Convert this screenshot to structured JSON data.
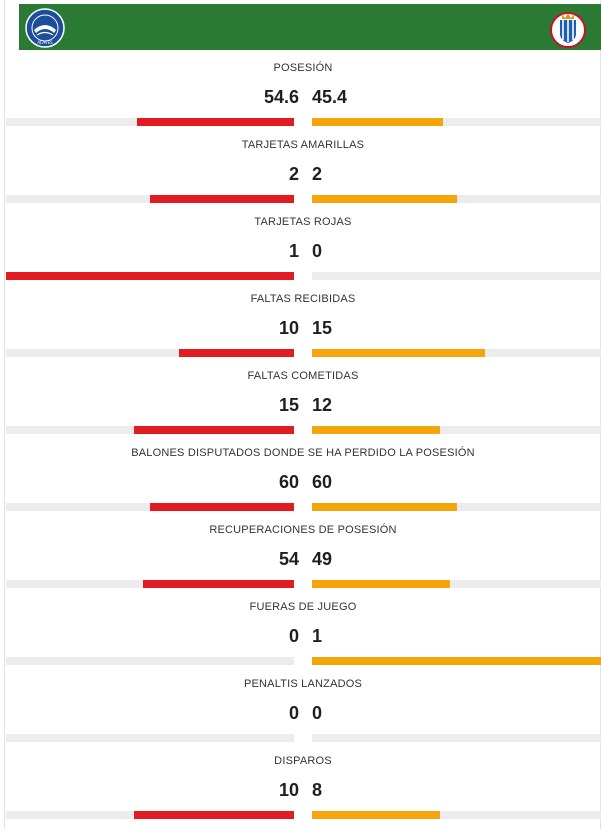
{
  "teams": {
    "home": {
      "name": "Deportivo Alavés",
      "badge_icon": "alaves-crest-icon",
      "color": "#e11b22"
    },
    "away": {
      "name": "RCD Espanyol",
      "badge_icon": "espanyol-crest-icon",
      "color": "#f5a40a"
    }
  },
  "header": {
    "background": "#2a7a34"
  },
  "stats": [
    {
      "label": "POSESIÓN",
      "home": "54.6",
      "away": "45.4",
      "home_share": 0.546,
      "away_share": 0.454
    },
    {
      "label": "TARJETAS AMARILLAS",
      "home": "2",
      "away": "2",
      "home_share": 0.5,
      "away_share": 0.5
    },
    {
      "label": "TARJETAS ROJAS",
      "home": "1",
      "away": "0",
      "home_share": 1.0,
      "away_share": 0.0
    },
    {
      "label": "FALTAS RECIBIDAS",
      "home": "10",
      "away": "15",
      "home_share": 0.4,
      "away_share": 0.6
    },
    {
      "label": "FALTAS COMETIDAS",
      "home": "15",
      "away": "12",
      "home_share": 0.556,
      "away_share": 0.444
    },
    {
      "label": "BALONES DISPUTADOS DONDE SE HA PERDIDO LA POSESIÓN",
      "home": "60",
      "away": "60",
      "home_share": 0.5,
      "away_share": 0.5
    },
    {
      "label": "RECUPERACIONES DE POSESIÓN",
      "home": "54",
      "away": "49",
      "home_share": 0.524,
      "away_share": 0.476
    },
    {
      "label": "FUERAS DE JUEGO",
      "home": "0",
      "away": "1",
      "home_share": 0.0,
      "away_share": 1.0
    },
    {
      "label": "PENALTIS LANZADOS",
      "home": "0",
      "away": "0",
      "home_share": 0.0,
      "away_share": 0.0
    },
    {
      "label": "DISPAROS",
      "home": "10",
      "away": "8",
      "home_share": 0.556,
      "away_share": 0.444
    }
  ]
}
